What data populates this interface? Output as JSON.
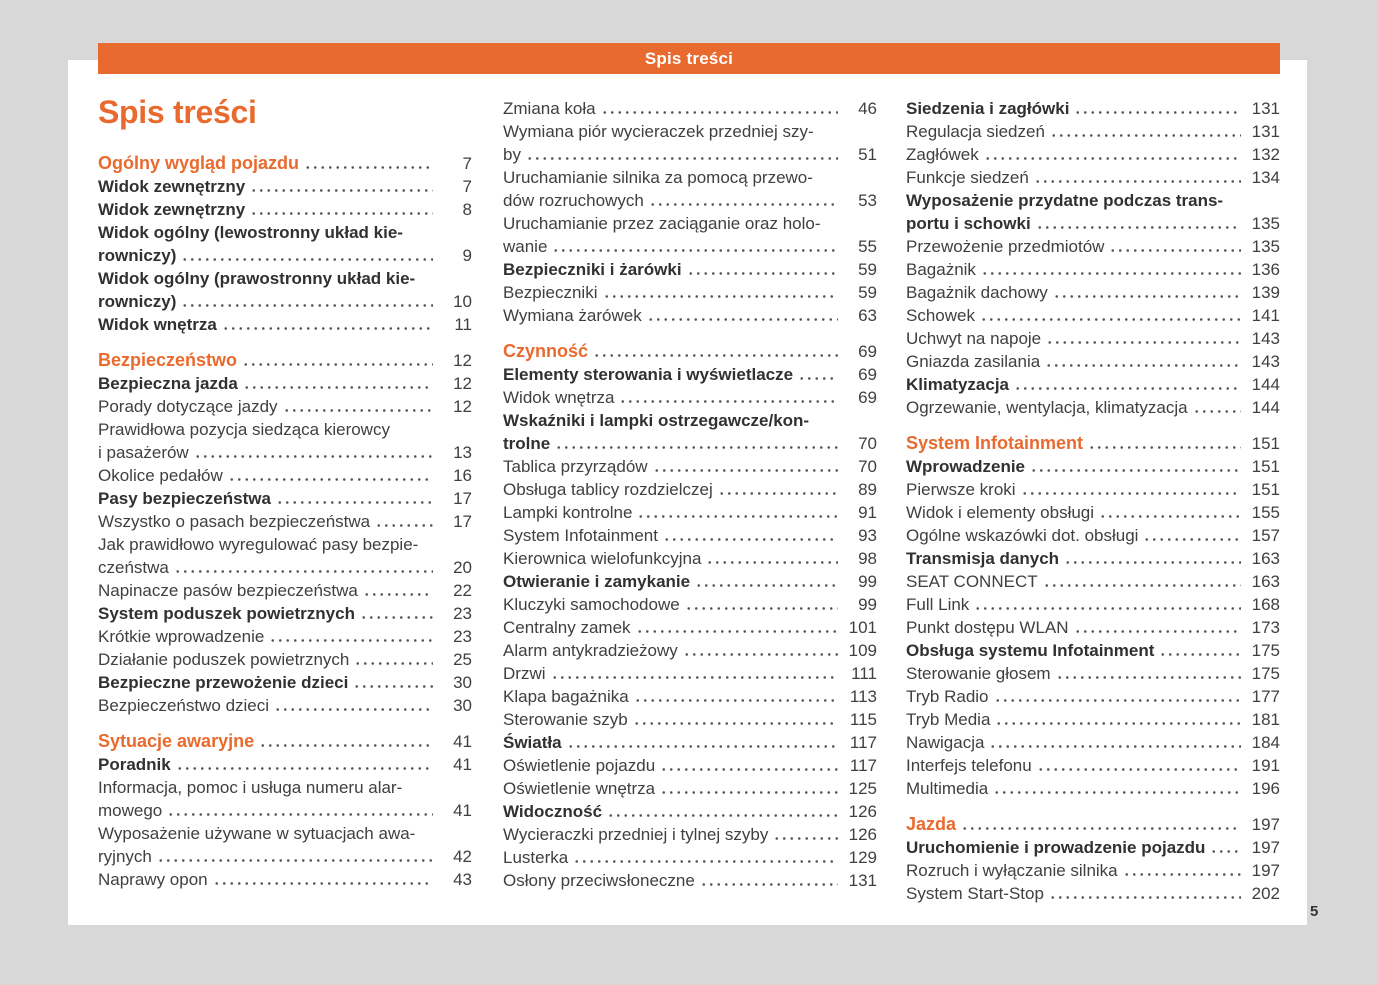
{
  "header_bar": {
    "label": "Spis treści"
  },
  "title": "Spis treści",
  "page_number": "5",
  "colors": {
    "accent": "#E96A2E",
    "background": "#D8D8D8",
    "paper": "#FFFFFF",
    "text": "#3E4042"
  },
  "columns": [
    {
      "items": [
        {
          "style": "section",
          "lines": [
            "Ogólny wygląd pojazdu"
          ],
          "page": "7"
        },
        {
          "style": "bold",
          "lines": [
            "Widok zewnętrzny"
          ],
          "page": "7"
        },
        {
          "style": "bold",
          "lines": [
            "Widok zewnętrzny"
          ],
          "page": "8"
        },
        {
          "style": "bold",
          "lines": [
            "Widok ogólny (lewostronny układ kie-",
            "rowniczy)"
          ],
          "page": "9"
        },
        {
          "style": "bold",
          "lines": [
            "Widok ogólny (prawostronny układ kie-",
            "rowniczy)"
          ],
          "page": "10"
        },
        {
          "style": "bold",
          "lines": [
            "Widok wnętrza"
          ],
          "page": "11"
        },
        {
          "style": "section",
          "lines": [
            "Bezpieczeństwo"
          ],
          "page": "12"
        },
        {
          "style": "bold",
          "lines": [
            "Bezpieczna jazda"
          ],
          "page": "12"
        },
        {
          "style": "normal",
          "lines": [
            "Porady dotyczące jazdy"
          ],
          "page": "12"
        },
        {
          "style": "normal",
          "lines": [
            "Prawidłowa pozycja siedząca kierowcy",
            "i pasażerów"
          ],
          "page": "13"
        },
        {
          "style": "normal",
          "lines": [
            "Okolice pedałów"
          ],
          "page": "16"
        },
        {
          "style": "bold",
          "lines": [
            "Pasy bezpieczeństwa"
          ],
          "page": "17"
        },
        {
          "style": "normal",
          "lines": [
            "Wszystko o pasach bezpieczeństwa"
          ],
          "page": "17"
        },
        {
          "style": "normal",
          "lines": [
            "Jak prawidłowo wyregulować pasy bezpie-",
            "czeństwa"
          ],
          "page": "20"
        },
        {
          "style": "normal",
          "lines": [
            "Napinacze pasów bezpieczeństwa"
          ],
          "page": "22"
        },
        {
          "style": "bold",
          "lines": [
            "System poduszek powietrznych"
          ],
          "page": "23"
        },
        {
          "style": "normal",
          "lines": [
            "Krótkie wprowadzenie"
          ],
          "page": "23"
        },
        {
          "style": "normal",
          "lines": [
            "Działanie poduszek powietrznych"
          ],
          "page": "25"
        },
        {
          "style": "bold",
          "lines": [
            "Bezpieczne przewożenie dzieci"
          ],
          "page": "30"
        },
        {
          "style": "normal",
          "lines": [
            "Bezpieczeństwo dzieci"
          ],
          "page": "30"
        },
        {
          "style": "section",
          "lines": [
            "Sytuacje awaryjne"
          ],
          "page": "41"
        },
        {
          "style": "bold",
          "lines": [
            "Poradnik"
          ],
          "page": "41"
        },
        {
          "style": "normal",
          "lines": [
            "Informacja, pomoc i usługa numeru alar-",
            "mowego"
          ],
          "page": "41"
        },
        {
          "style": "normal",
          "lines": [
            "Wyposażenie używane w sytuacjach awa-",
            "ryjnych"
          ],
          "page": "42"
        },
        {
          "style": "normal",
          "lines": [
            "Naprawy opon"
          ],
          "page": "43"
        }
      ]
    },
    {
      "items": [
        {
          "style": "normal",
          "lines": [
            "Zmiana koła"
          ],
          "page": "46"
        },
        {
          "style": "normal",
          "lines": [
            "Wymiana piór wycieraczek przedniej szy-",
            "by"
          ],
          "page": "51"
        },
        {
          "style": "normal",
          "lines": [
            "Uruchamianie silnika za pomocą przewo-",
            "dów rozruchowych"
          ],
          "page": "53"
        },
        {
          "style": "normal",
          "lines": [
            "Uruchamianie przez zaciąganie oraz holo-",
            "wanie"
          ],
          "page": "55"
        },
        {
          "style": "bold",
          "lines": [
            "Bezpieczniki i żarówki"
          ],
          "page": "59"
        },
        {
          "style": "normal",
          "lines": [
            "Bezpieczniki"
          ],
          "page": "59"
        },
        {
          "style": "normal",
          "lines": [
            "Wymiana żarówek"
          ],
          "page": "63"
        },
        {
          "style": "section",
          "lines": [
            "Czynność"
          ],
          "page": "69"
        },
        {
          "style": "bold",
          "lines": [
            "Elementy sterowania i wyświetlacze"
          ],
          "page": "69"
        },
        {
          "style": "normal",
          "lines": [
            "Widok wnętrza"
          ],
          "page": "69"
        },
        {
          "style": "bold",
          "lines": [
            "Wskaźniki i lampki ostrzegawcze/kon-",
            "trolne"
          ],
          "page": "70"
        },
        {
          "style": "normal",
          "lines": [
            "Tablica przyrządów"
          ],
          "page": "70"
        },
        {
          "style": "normal",
          "lines": [
            "Obsługa tablicy rozdzielczej"
          ],
          "page": "89"
        },
        {
          "style": "normal",
          "lines": [
            "Lampki kontrolne"
          ],
          "page": "91"
        },
        {
          "style": "normal",
          "lines": [
            "System Infotainment"
          ],
          "page": "93"
        },
        {
          "style": "normal",
          "lines": [
            "Kierownica wielofunkcyjna"
          ],
          "page": "98"
        },
        {
          "style": "bold",
          "lines": [
            "Otwieranie i zamykanie"
          ],
          "page": "99"
        },
        {
          "style": "normal",
          "lines": [
            "Kluczyki samochodowe"
          ],
          "page": "99"
        },
        {
          "style": "normal",
          "lines": [
            "Centralny zamek"
          ],
          "page": "101"
        },
        {
          "style": "normal",
          "lines": [
            "Alarm antykradzieżowy"
          ],
          "page": "109"
        },
        {
          "style": "normal",
          "lines": [
            "Drzwi"
          ],
          "page": "111"
        },
        {
          "style": "normal",
          "lines": [
            "Klapa bagażnika"
          ],
          "page": "113"
        },
        {
          "style": "normal",
          "lines": [
            "Sterowanie szyb"
          ],
          "page": "115"
        },
        {
          "style": "bold",
          "lines": [
            "Światła"
          ],
          "page": "117"
        },
        {
          "style": "normal",
          "lines": [
            "Oświetlenie pojazdu"
          ],
          "page": "117"
        },
        {
          "style": "normal",
          "lines": [
            "Oświetlenie wnętrza"
          ],
          "page": "125"
        },
        {
          "style": "bold",
          "lines": [
            "Widoczność"
          ],
          "page": "126"
        },
        {
          "style": "normal",
          "lines": [
            "Wycieraczki przedniej i tylnej szyby"
          ],
          "page": "126"
        },
        {
          "style": "normal",
          "lines": [
            "Lusterka"
          ],
          "page": "129"
        },
        {
          "style": "normal",
          "lines": [
            "Osłony przeciwsłoneczne"
          ],
          "page": "131"
        }
      ]
    },
    {
      "items": [
        {
          "style": "bold",
          "lines": [
            "Siedzenia i zagłówki"
          ],
          "page": "131"
        },
        {
          "style": "normal",
          "lines": [
            "Regulacja siedzeń"
          ],
          "page": "131"
        },
        {
          "style": "normal",
          "lines": [
            "Zagłówek"
          ],
          "page": "132"
        },
        {
          "style": "normal",
          "lines": [
            "Funkcje siedzeń"
          ],
          "page": "134"
        },
        {
          "style": "bold",
          "lines": [
            "Wyposażenie przydatne podczas trans-",
            "portu i schowki"
          ],
          "page": "135"
        },
        {
          "style": "normal",
          "lines": [
            "Przewożenie przedmiotów"
          ],
          "page": "135"
        },
        {
          "style": "normal",
          "lines": [
            "Bagażnik"
          ],
          "page": "136"
        },
        {
          "style": "normal",
          "lines": [
            "Bagażnik dachowy"
          ],
          "page": "139"
        },
        {
          "style": "normal",
          "lines": [
            "Schowek"
          ],
          "page": "141"
        },
        {
          "style": "normal",
          "lines": [
            "Uchwyt na napoje"
          ],
          "page": "143"
        },
        {
          "style": "normal",
          "lines": [
            "Gniazda zasilania"
          ],
          "page": "143"
        },
        {
          "style": "bold",
          "lines": [
            "Klimatyzacja"
          ],
          "page": "144"
        },
        {
          "style": "normal",
          "lines": [
            "Ogrzewanie, wentylacja, klimatyzacja"
          ],
          "page": "144"
        },
        {
          "style": "section",
          "lines": [
            "System Infotainment"
          ],
          "page": "151"
        },
        {
          "style": "bold",
          "lines": [
            "Wprowadzenie"
          ],
          "page": "151"
        },
        {
          "style": "normal",
          "lines": [
            "Pierwsze kroki"
          ],
          "page": "151"
        },
        {
          "style": "normal",
          "lines": [
            "Widok i elementy obsługi"
          ],
          "page": "155"
        },
        {
          "style": "normal",
          "lines": [
            "Ogólne wskazówki dot. obsługi"
          ],
          "page": "157"
        },
        {
          "style": "bold",
          "lines": [
            "Transmisja danych"
          ],
          "page": "163"
        },
        {
          "style": "normal",
          "lines": [
            "SEAT CONNECT"
          ],
          "page": "163"
        },
        {
          "style": "normal",
          "lines": [
            "Full Link"
          ],
          "page": "168"
        },
        {
          "style": "normal",
          "lines": [
            "Punkt dostępu WLAN"
          ],
          "page": "173"
        },
        {
          "style": "bold",
          "lines": [
            "Obsługa systemu Infotainment"
          ],
          "page": "175"
        },
        {
          "style": "normal",
          "lines": [
            "Sterowanie głosem"
          ],
          "page": "175"
        },
        {
          "style": "normal",
          "lines": [
            "Tryb Radio"
          ],
          "page": "177"
        },
        {
          "style": "normal",
          "lines": [
            "Tryb Media"
          ],
          "page": "181"
        },
        {
          "style": "normal",
          "lines": [
            "Nawigacja"
          ],
          "page": "184"
        },
        {
          "style": "normal",
          "lines": [
            "Interfejs telefonu"
          ],
          "page": "191"
        },
        {
          "style": "normal",
          "lines": [
            "Multimedia"
          ],
          "page": "196"
        },
        {
          "style": "section",
          "lines": [
            "Jazda"
          ],
          "page": "197"
        },
        {
          "style": "bold",
          "lines": [
            "Uruchomienie i prowadzenie pojazdu"
          ],
          "page": "197"
        },
        {
          "style": "normal",
          "lines": [
            "Rozruch i wyłączanie silnika"
          ],
          "page": "197"
        },
        {
          "style": "normal",
          "lines": [
            "System Start-Stop"
          ],
          "page": "202"
        }
      ]
    }
  ]
}
